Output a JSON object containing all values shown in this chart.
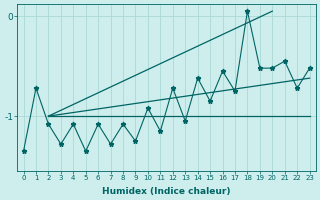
{
  "xlabel": "Humidex (Indice chaleur)",
  "x": [
    0,
    1,
    2,
    3,
    4,
    5,
    6,
    7,
    8,
    9,
    10,
    11,
    12,
    13,
    14,
    15,
    16,
    17,
    18,
    19,
    20,
    21,
    22,
    23
  ],
  "y_main": [
    -1.35,
    -0.72,
    -1.08,
    -1.28,
    -1.08,
    -1.35,
    -1.08,
    -1.28,
    -1.08,
    -1.25,
    -0.92,
    -1.15,
    -0.72,
    -1.05,
    -0.62,
    -0.85,
    -0.55,
    -0.75,
    0.05,
    -0.52,
    -0.52,
    -0.45,
    -0.72,
    -0.52
  ],
  "y_flat": -1.0,
  "x_flat_start": 2,
  "x_flat_end": 23,
  "trend2_x": [
    2,
    23
  ],
  "trend2_y": [
    -1.0,
    -0.62
  ],
  "trend3_x": [
    2,
    20
  ],
  "trend3_y": [
    -1.0,
    0.05
  ],
  "background_color": "#cdeeed",
  "grid_color": "#aad8d5",
  "line_color": "#006464",
  "ylim": [
    -1.55,
    0.12
  ],
  "yticks": [
    -1,
    0
  ],
  "xlim": [
    -0.5,
    23.5
  ]
}
